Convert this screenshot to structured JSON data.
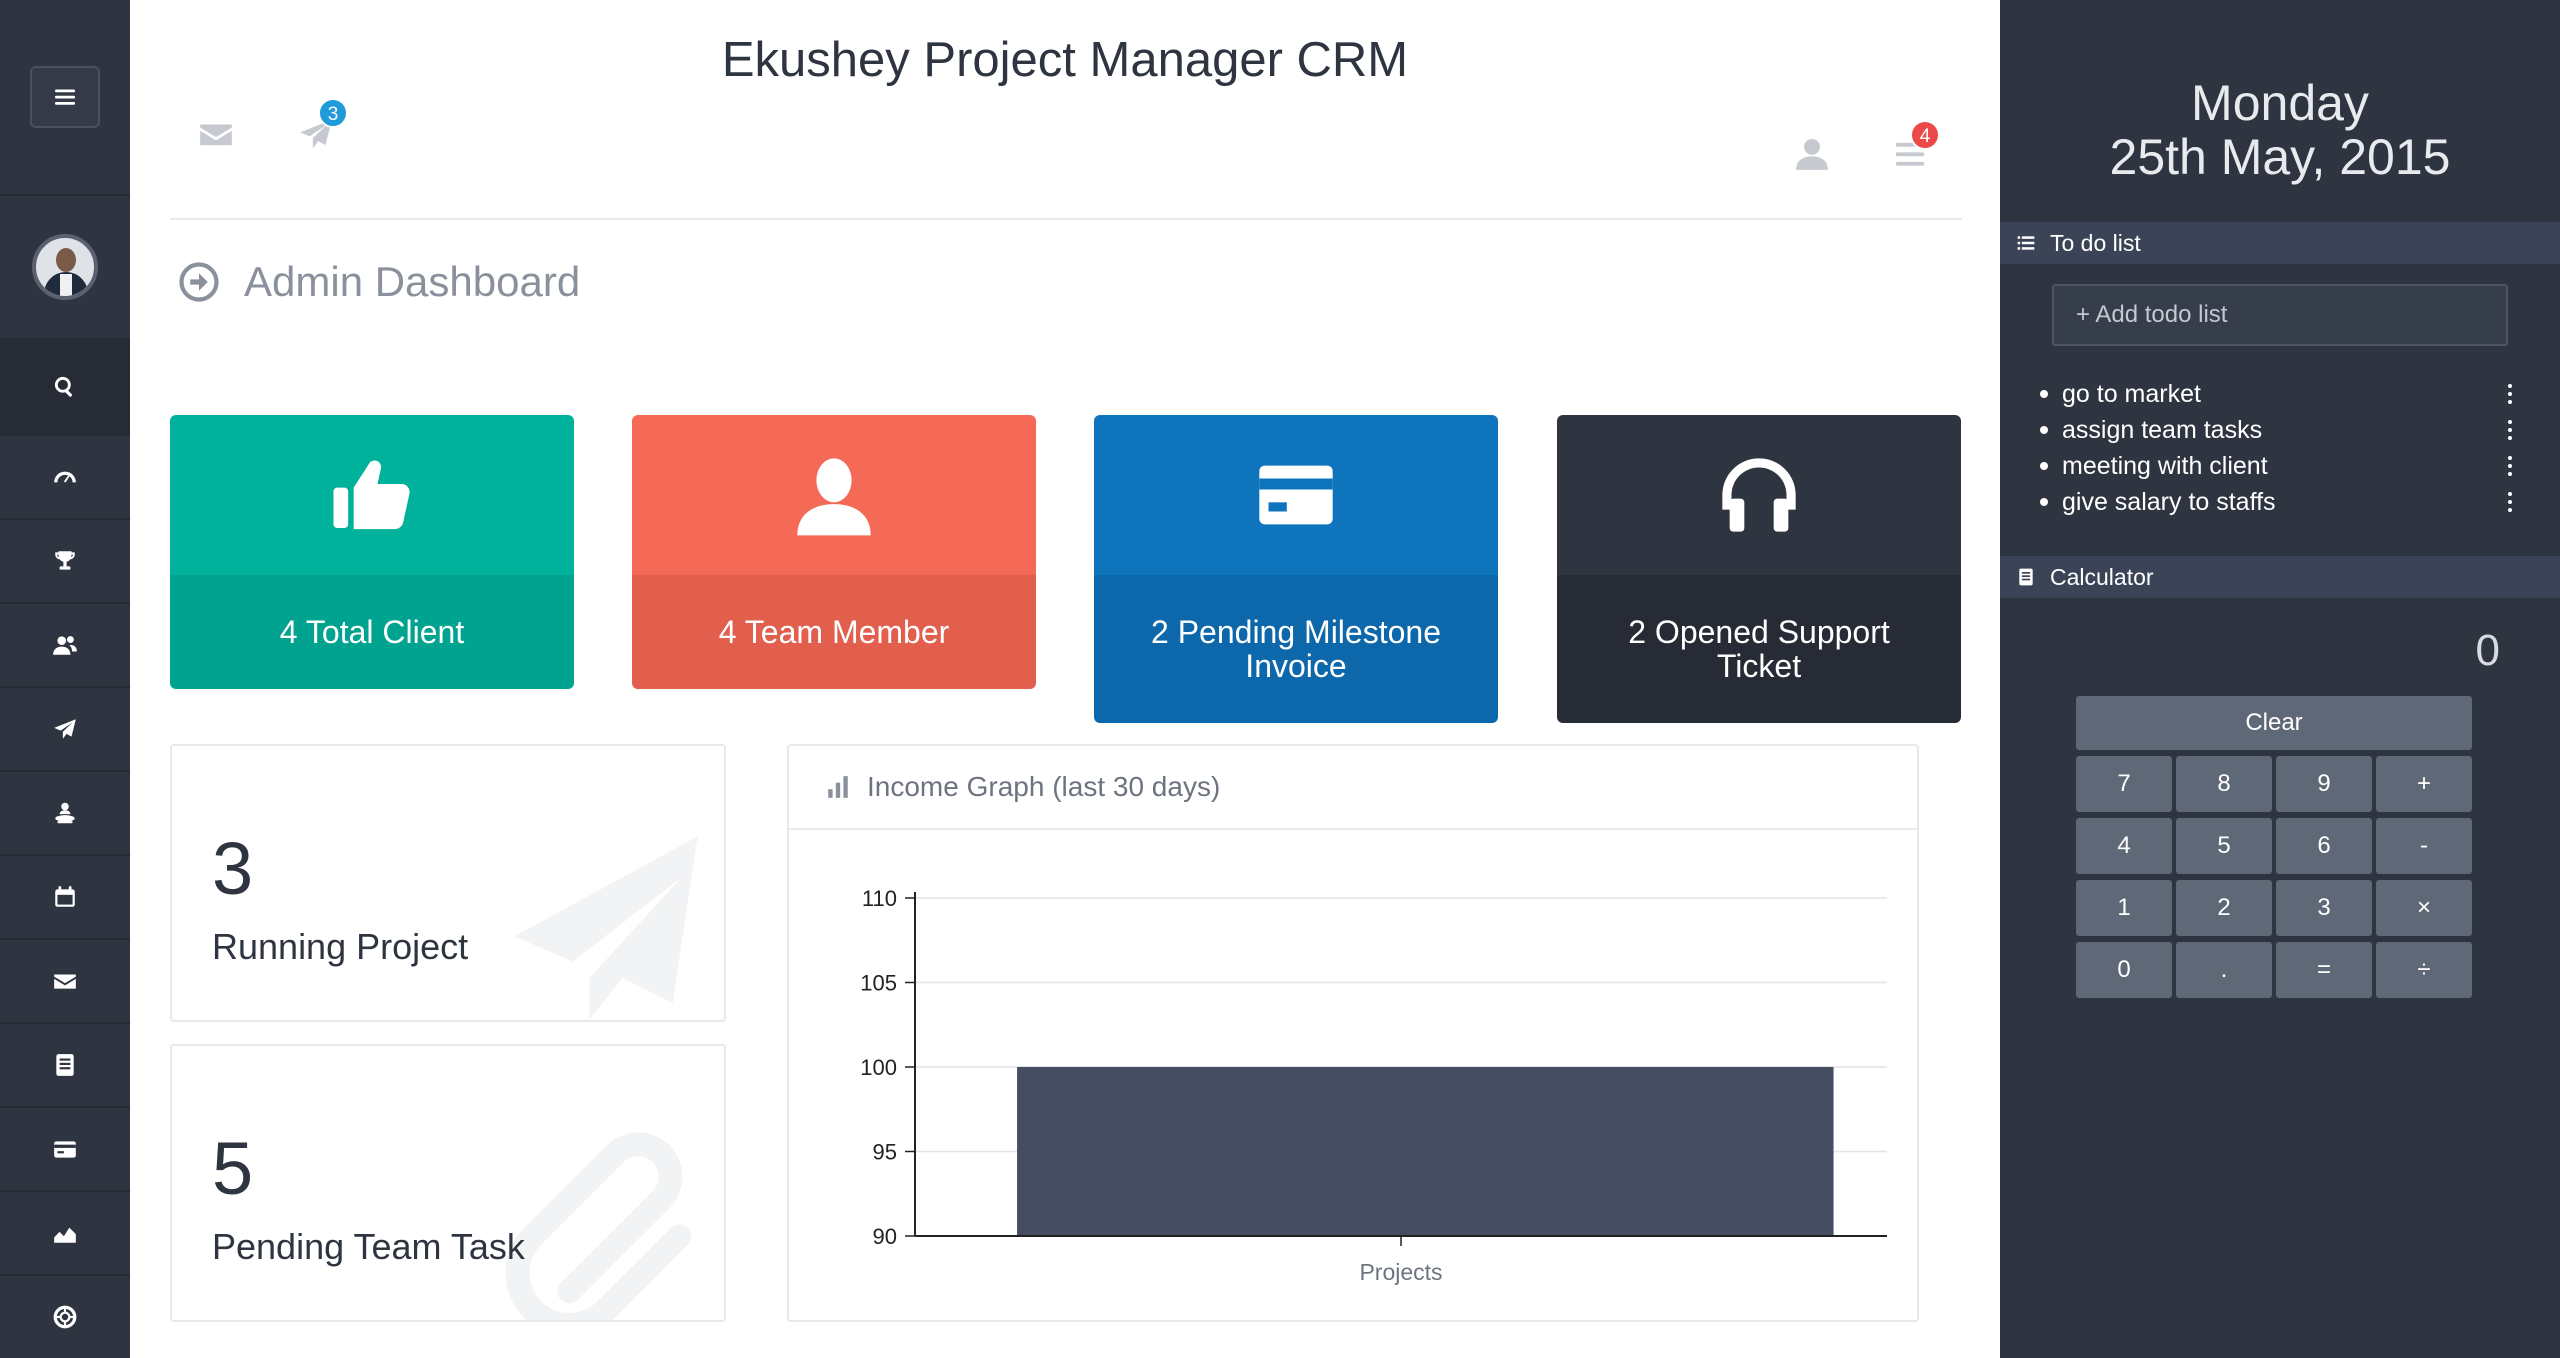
{
  "header": {
    "app_title": "Ekushey Project Manager CRM",
    "messages_icon": "mail-icon",
    "notifications_icon": "paper-plane-icon",
    "notifications_count": "3",
    "profile_icon": "user-icon",
    "menu_icon": "list-icon",
    "menu_count": "4"
  },
  "page": {
    "heading": "Admin Dashboard",
    "heading_icon": "circle-arrow-right-icon"
  },
  "stat_cards": [
    {
      "label": "4 Total Client",
      "icon": "thumbs-up-icon",
      "top_color": "#00b29b",
      "bottom_color": "#00a38f"
    },
    {
      "label": "4 Team Member",
      "icon": "user-icon",
      "top_color": "#f46a56",
      "bottom_color": "#e15f4c"
    },
    {
      "label": "2 Pending Milestone Invoice",
      "icon": "credit-card-icon",
      "top_color": "#0e75bd",
      "bottom_color": "#0c68aa"
    },
    {
      "label": "2 Opened Support Ticket",
      "icon": "headphones-icon",
      "top_color": "#2f3441",
      "bottom_color": "#262b35"
    }
  ],
  "info_boxes": [
    {
      "number": "3",
      "label": "Running Project",
      "icon": "paper-plane-icon"
    },
    {
      "number": "5",
      "label": "Pending Team Task",
      "icon": "paperclip-icon"
    }
  ],
  "graph": {
    "title": "Income Graph (last 30 days)",
    "icon": "bar-chart-icon"
  },
  "chart_data": {
    "type": "bar",
    "title": "Income Graph (last 30 days)",
    "categories": [
      "Projects"
    ],
    "values": [
      100
    ],
    "ylim": [
      90,
      110
    ],
    "yticks": [
      90,
      95,
      100,
      105,
      110
    ],
    "xlabel": "",
    "ylabel": "",
    "grid": true,
    "bar_color": "#454d63"
  },
  "sidebar": {
    "items": [
      {
        "name": "menu-toggle",
        "icon": "hamburger-icon"
      },
      {
        "name": "profile-avatar",
        "icon": "avatar"
      },
      {
        "name": "search",
        "icon": "search-icon"
      },
      {
        "name": "dashboard",
        "icon": "dashboard-icon"
      },
      {
        "name": "awards",
        "icon": "trophy-icon"
      },
      {
        "name": "clients",
        "icon": "users-icon"
      },
      {
        "name": "projects",
        "icon": "paper-plane-icon"
      },
      {
        "name": "staff",
        "icon": "staff-icon"
      },
      {
        "name": "calendar",
        "icon": "calendar-icon"
      },
      {
        "name": "messages",
        "icon": "mail-icon"
      },
      {
        "name": "notes",
        "icon": "notebook-icon"
      },
      {
        "name": "payments",
        "icon": "credit-card-icon"
      },
      {
        "name": "reports",
        "icon": "area-chart-icon"
      },
      {
        "name": "support",
        "icon": "lifebuoy-icon"
      }
    ]
  },
  "right_panel": {
    "day": "Monday",
    "date": "25th May, 2015",
    "todo": {
      "title": "To do list",
      "placeholder": "+ Add todo list",
      "items": [
        "go to market",
        "assign team tasks",
        "meeting with client",
        "give salary to staffs"
      ]
    },
    "calculator": {
      "title": "Calculator",
      "display": "0",
      "clear": "Clear",
      "keys": [
        "7",
        "8",
        "9",
        "+",
        "4",
        "5",
        "6",
        "-",
        "1",
        "2",
        "3",
        "×",
        "0",
        ".",
        "=",
        "÷"
      ]
    }
  }
}
